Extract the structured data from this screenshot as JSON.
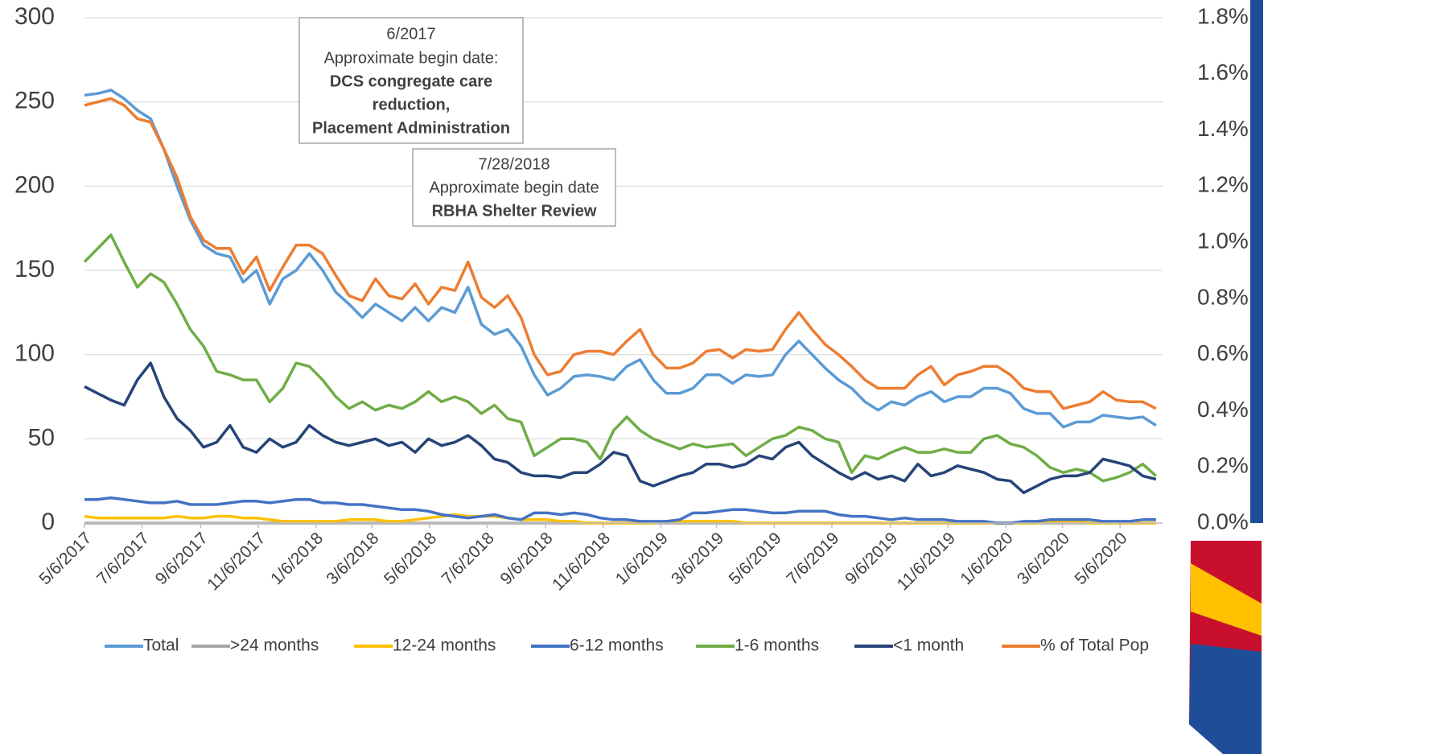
{
  "chart_data": {
    "type": "line",
    "x": [
      "5/6/2017",
      "5/20/2017",
      "6/3/2017",
      "6/17/2017",
      "7/1/2017",
      "7/15/2017",
      "7/29/2017",
      "8/12/2017",
      "8/26/2017",
      "9/9/2017",
      "9/23/2017",
      "10/7/2017",
      "10/21/2017",
      "11/4/2017",
      "11/18/2017",
      "12/2/2017",
      "12/16/2017",
      "12/30/2017",
      "1/13/2018",
      "1/27/2018",
      "2/10/2018",
      "2/24/2018",
      "3/10/2018",
      "3/24/2018",
      "4/7/2018",
      "4/21/2018",
      "5/5/2018",
      "5/19/2018",
      "6/2/2018",
      "6/16/2018",
      "6/30/2018",
      "7/14/2018",
      "7/28/2018",
      "8/11/2018",
      "8/25/2018",
      "9/8/2018",
      "9/22/2018",
      "10/6/2018",
      "10/20/2018",
      "11/3/2018",
      "11/17/2018",
      "12/1/2018",
      "12/15/2018",
      "12/29/2018",
      "1/12/2019",
      "1/26/2019",
      "2/9/2019",
      "2/23/2019",
      "3/9/2019",
      "3/23/2019",
      "4/6/2019",
      "4/20/2019",
      "5/4/2019",
      "5/18/2019",
      "6/1/2019",
      "6/15/2019",
      "6/29/2019",
      "7/13/2019",
      "7/27/2019",
      "8/10/2019",
      "8/24/2019",
      "9/7/2019",
      "9/21/2019",
      "10/5/2019",
      "10/19/2019",
      "11/2/2019",
      "11/16/2019",
      "11/30/2019",
      "12/14/2019",
      "12/28/2019",
      "1/11/2020",
      "1/25/2020",
      "2/8/2020",
      "2/22/2020",
      "3/7/2020",
      "3/21/2020",
      "4/4/2020",
      "4/18/2020",
      "5/2/2020",
      "5/16/2020",
      "5/30/2020",
      "6/13/2020"
    ],
    "xlim": [
      "5/6/2017",
      "6/20/2020"
    ],
    "xticks": [
      "5/6/2017",
      "7/6/2017",
      "9/6/2017",
      "11/6/2017",
      "1/6/2018",
      "3/6/2018",
      "5/6/2018",
      "7/6/2018",
      "9/6/2018",
      "11/6/2018",
      "1/6/2019",
      "3/6/2019",
      "5/6/2019",
      "7/6/2019",
      "9/6/2019",
      "11/6/2019",
      "1/6/2020",
      "3/6/2020",
      "5/6/2020"
    ],
    "ylim": [
      0,
      300
    ],
    "yticks": [
      0,
      50,
      100,
      150,
      200,
      250,
      300
    ],
    "y2lim": [
      0,
      1.8
    ],
    "y2ticks": [
      {
        "value": 0,
        "label": "0.0%"
      },
      {
        "value": 0.2,
        "label": "0.2%"
      },
      {
        "value": 0.4,
        "label": "0.4%"
      },
      {
        "value": 0.6,
        "label": "0.6%"
      },
      {
        "value": 0.8,
        "label": "0.8%"
      },
      {
        "value": 1.0,
        "label": "1.0%"
      },
      {
        "value": 1.2,
        "label": "1.2%"
      },
      {
        "value": 1.4,
        "label": "1.4%"
      },
      {
        "value": 1.6,
        "label": "1.6%"
      },
      {
        "value": 1.8,
        "label": "1.8%"
      }
    ],
    "grid": true,
    "legend": "bottom",
    "annotations": [
      {
        "lines": [
          "6/2017",
          "Approximate begin date:",
          "DCS congregate care",
          "reduction,",
          "Placement Administration"
        ]
      },
      {
        "lines": [
          "7/28/2018",
          "Approximate begin date",
          "RBHA Shelter Review"
        ]
      }
    ],
    "series": [
      {
        "name": "Total",
        "color": "#5b9bd5",
        "values": [
          254,
          255,
          257,
          252,
          245,
          240,
          222,
          200,
          180,
          165,
          160,
          158,
          143,
          150,
          130,
          145,
          150,
          160,
          150,
          137,
          130,
          122,
          130,
          125,
          120,
          128,
          120,
          128,
          125,
          140,
          118,
          112,
          115,
          105,
          88,
          76,
          80,
          87,
          88,
          87,
          85,
          93,
          97,
          85,
          77,
          77,
          80,
          88,
          88,
          83,
          88,
          87,
          88,
          100,
          108,
          100,
          92,
          85,
          80,
          72,
          67,
          72,
          70,
          75,
          78,
          72,
          75,
          75,
          80,
          80,
          77,
          68,
          65,
          65,
          57,
          60,
          60,
          64,
          63,
          62,
          63,
          58
        ]
      },
      {
        "name": ">24 months",
        "color": "#a5a5a5",
        "values": [
          0,
          0,
          0,
          0,
          0,
          0,
          0,
          0,
          0,
          0,
          0,
          0,
          0,
          0,
          0,
          0,
          0,
          0,
          0,
          0,
          0,
          0,
          0,
          0,
          0,
          0,
          0,
          0,
          0,
          0,
          0,
          0,
          0,
          0,
          0,
          0,
          0,
          0,
          0,
          0,
          0,
          0,
          0,
          0,
          0,
          0,
          0,
          0,
          0,
          0,
          0,
          0,
          0,
          0,
          0,
          0,
          0,
          0,
          0,
          0,
          0,
          0,
          0,
          0,
          0,
          0,
          0,
          0,
          0,
          0,
          0,
          0,
          0,
          0,
          0,
          0,
          0,
          0,
          0,
          0,
          0,
          0
        ]
      },
      {
        "name": "12-24 months",
        "color": "#ffc000",
        "values": [
          4,
          3,
          3,
          3,
          3,
          3,
          3,
          4,
          3,
          3,
          4,
          4,
          3,
          3,
          2,
          1,
          1,
          1,
          1,
          1,
          2,
          2,
          2,
          1,
          1,
          2,
          3,
          4,
          5,
          4,
          4,
          4,
          3,
          2,
          2,
          2,
          1,
          1,
          0,
          0,
          0,
          0,
          0,
          0,
          1,
          1,
          1,
          1,
          1,
          1,
          0,
          0,
          0,
          0,
          0,
          0,
          0,
          0,
          0,
          0,
          0,
          0,
          0,
          0,
          0,
          0,
          0,
          0,
          0,
          0,
          0,
          0,
          0,
          1,
          1,
          1,
          0,
          0,
          0,
          0,
          0,
          0
        ]
      },
      {
        "name": "6-12 months",
        "color": "#4472c4",
        "values": [
          14,
          14,
          15,
          14,
          13,
          12,
          12,
          13,
          11,
          11,
          11,
          12,
          13,
          13,
          12,
          13,
          14,
          14,
          12,
          12,
          11,
          11,
          10,
          9,
          8,
          8,
          7,
          5,
          4,
          3,
          4,
          5,
          3,
          2,
          6,
          6,
          5,
          6,
          5,
          3,
          2,
          2,
          1,
          1,
          1,
          2,
          6,
          6,
          7,
          8,
          8,
          7,
          6,
          6,
          7,
          7,
          7,
          5,
          4,
          4,
          3,
          2,
          3,
          2,
          2,
          2,
          1,
          1,
          1,
          0,
          0,
          1,
          1,
          2,
          2,
          2,
          2,
          1,
          1,
          1,
          2,
          2
        ]
      },
      {
        "name": "1-6 months",
        "color": "#70ad47",
        "values": [
          155,
          163,
          171,
          155,
          140,
          148,
          143,
          130,
          115,
          105,
          90,
          88,
          85,
          85,
          72,
          80,
          95,
          93,
          85,
          75,
          68,
          72,
          67,
          70,
          68,
          72,
          78,
          72,
          75,
          72,
          65,
          70,
          62,
          60,
          40,
          45,
          50,
          50,
          48,
          38,
          55,
          63,
          55,
          50,
          47,
          44,
          47,
          45,
          46,
          47,
          40,
          45,
          50,
          52,
          57,
          55,
          50,
          48,
          30,
          40,
          38,
          42,
          45,
          42,
          42,
          44,
          42,
          42,
          50,
          52,
          47,
          45,
          40,
          33,
          30,
          32,
          30,
          25,
          27,
          30,
          35,
          28
        ]
      },
      {
        "name": "<1 month",
        "color": "#264478",
        "values": [
          81,
          77,
          73,
          70,
          85,
          95,
          75,
          62,
          55,
          45,
          48,
          58,
          45,
          42,
          50,
          45,
          48,
          58,
          52,
          48,
          46,
          48,
          50,
          46,
          48,
          42,
          50,
          46,
          48,
          52,
          46,
          38,
          36,
          30,
          28,
          28,
          27,
          30,
          30,
          35,
          42,
          40,
          25,
          22,
          25,
          28,
          30,
          35,
          35,
          33,
          35,
          40,
          38,
          45,
          48,
          40,
          35,
          30,
          26,
          30,
          26,
          28,
          25,
          35,
          28,
          30,
          34,
          32,
          30,
          26,
          25,
          18,
          22,
          26,
          28,
          28,
          30,
          38,
          36,
          34,
          28,
          26
        ]
      },
      {
        "name": "% of Total Pop",
        "color": "#ed7d31",
        "axis": "y2",
        "values": [
          1.488,
          1.5,
          1.512,
          1.488,
          1.44,
          1.428,
          1.332,
          1.23,
          1.092,
          1.008,
          0.978,
          0.978,
          0.888,
          0.948,
          0.828,
          0.912,
          0.99,
          0.99,
          0.96,
          0.882,
          0.81,
          0.792,
          0.87,
          0.81,
          0.798,
          0.852,
          0.78,
          0.84,
          0.828,
          0.93,
          0.804,
          0.768,
          0.81,
          0.732,
          0.6,
          0.528,
          0.54,
          0.6,
          0.612,
          0.612,
          0.6,
          0.648,
          0.69,
          0.6,
          0.552,
          0.552,
          0.57,
          0.612,
          0.618,
          0.588,
          0.618,
          0.612,
          0.618,
          0.69,
          0.75,
          0.69,
          0.636,
          0.6,
          0.558,
          0.51,
          0.48,
          0.48,
          0.48,
          0.528,
          0.558,
          0.492,
          0.528,
          0.54,
          0.558,
          0.558,
          0.528,
          0.48,
          0.468,
          0.468,
          0.408,
          0.42,
          0.432,
          0.468,
          0.438,
          0.432,
          0.432,
          0.408
        ]
      }
    ]
  }
}
